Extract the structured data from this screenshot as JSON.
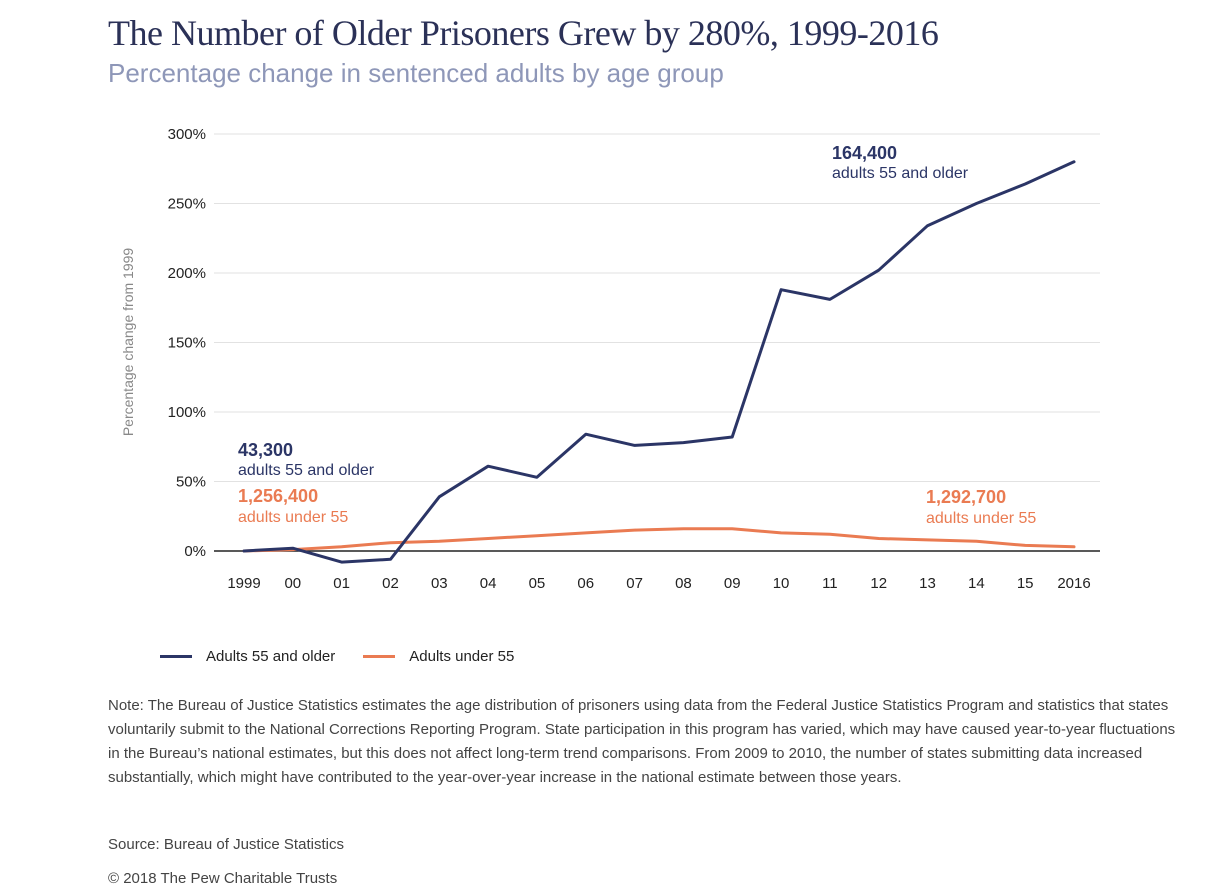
{
  "header": {
    "title": "The Number of Older Prisoners Grew by 280%, 1999-2016",
    "subtitle": "Percentage change in sentenced adults by age group"
  },
  "colors": {
    "older": "#2b3566",
    "younger": "#ea7b52",
    "grid": "#e2e2e2",
    "axis": "#222222"
  },
  "chart_data": {
    "type": "line",
    "title": "The Number of Older Prisoners Grew by 280%, 1999-2016",
    "subtitle": "Percentage change in sentenced adults by age group",
    "xlabel": "",
    "ylabel": "Percentage change from 1999",
    "ylim": [
      0,
      300
    ],
    "yticks": [
      0,
      50,
      100,
      150,
      200,
      250,
      300
    ],
    "ytick_labels": [
      "0%",
      "50%",
      "100%",
      "150%",
      "200%",
      "250%",
      "300%"
    ],
    "grid": true,
    "x": [
      "1999",
      "00",
      "01",
      "02",
      "03",
      "04",
      "05",
      "06",
      "07",
      "08",
      "09",
      "10",
      "11",
      "12",
      "13",
      "14",
      "15",
      "2016"
    ],
    "series": [
      {
        "name": "Adults 55 and older",
        "color": "#2b3566",
        "values": [
          0,
          2,
          -8,
          -6,
          39,
          61,
          53,
          84,
          76,
          78,
          82,
          188,
          181,
          202,
          234,
          250,
          264,
          280
        ]
      },
      {
        "name": "Adults under 55",
        "color": "#ea7b52",
        "values": [
          0,
          1,
          3,
          6,
          7,
          9,
          11,
          13,
          15,
          16,
          16,
          13,
          12,
          9,
          8,
          7,
          4,
          3
        ]
      }
    ],
    "annotations": [
      {
        "series": 0,
        "year": "1999",
        "value": "43,300",
        "label": "adults 55 and older"
      },
      {
        "series": 1,
        "year": "1999",
        "value": "1,256,400",
        "label": "adults under 55"
      },
      {
        "series": 0,
        "year": "2016",
        "value": "164,400",
        "label": "adults 55 and older"
      },
      {
        "series": 1,
        "year": "2016",
        "value": "1,292,700",
        "label": "adults under 55"
      }
    ],
    "legend_position": "bottom-left"
  },
  "legend": {
    "older": "Adults 55 and older",
    "younger": "Adults under 55"
  },
  "footer": {
    "note": "Note: The Bureau of Justice Statistics estimates the age distribution of prisoners using data from the Federal Justice Statistics Program and statistics that states voluntarily submit to the National Corrections Reporting Program. State participation in this program has varied, which may have caused year-to-year fluctuations in the Bureau’s national estimates, but this does not affect long-term trend comparisons. From 2009 to 2010, the number of states submitting data increased substantially, which might have contributed to the year-over-year increase in the national estimate between those years.",
    "source": "Source: Bureau of Justice Statistics",
    "copyright": "© 2018 The Pew Charitable Trusts"
  }
}
